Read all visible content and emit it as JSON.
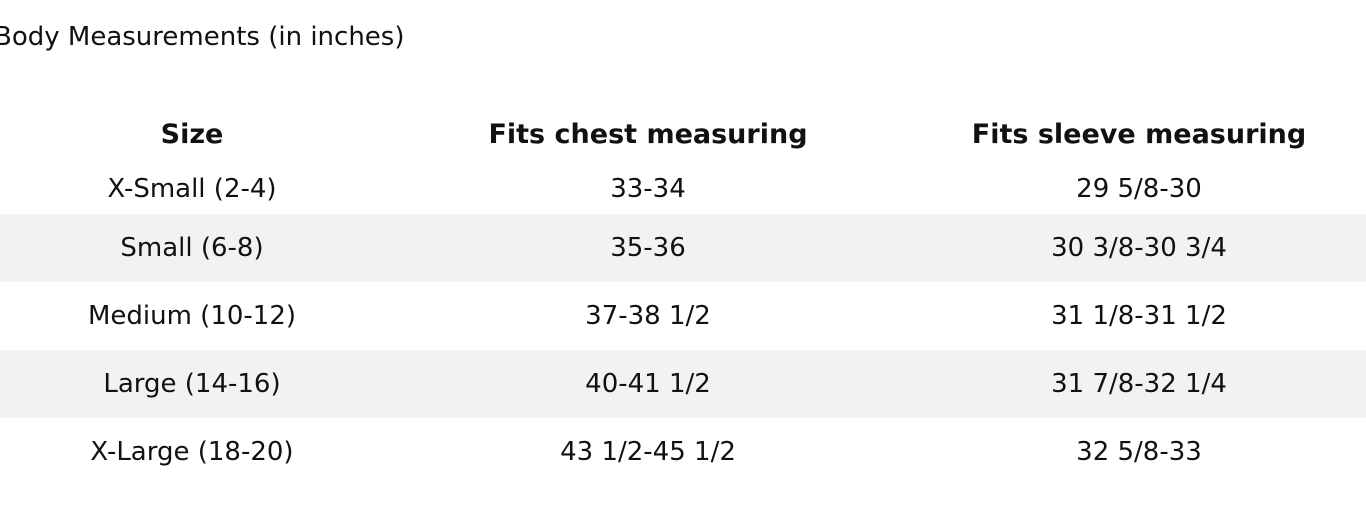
{
  "title": "Body Measurements (in inches)",
  "table": {
    "headers": [
      "Size",
      "Fits chest measuring",
      "Fits sleeve measuring"
    ],
    "rows": [
      [
        "X-Small (2-4)",
        "33-34",
        "29 5/8-30"
      ],
      [
        "Small (6-8)",
        "35-36",
        "30 3/8-30 3/4"
      ],
      [
        "Medium (10-12)",
        "37-38 1/2",
        "31 1/8-31 1/2"
      ],
      [
        "Large (14-16)",
        "40-41 1/2",
        "31 7/8-32 1/4"
      ],
      [
        "X-Large (18-20)",
        "43 1/2-45 1/2",
        "32 5/8-33"
      ]
    ]
  }
}
